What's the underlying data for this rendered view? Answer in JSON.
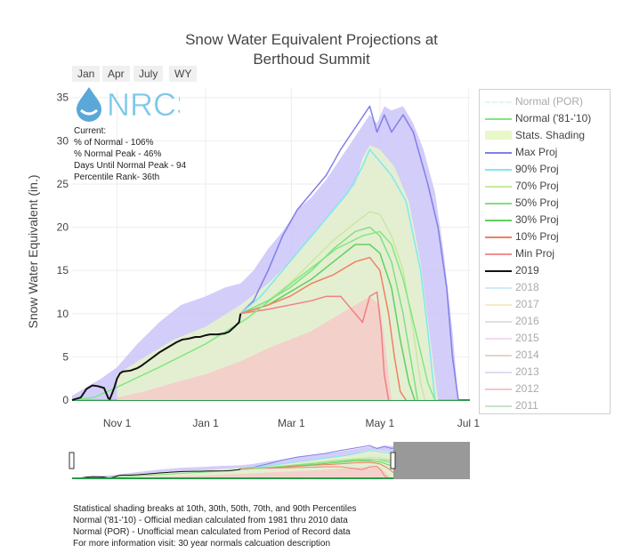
{
  "chart_data": {
    "type": "line",
    "title_line1": "Snow Water Equivalent Projections at",
    "title_line2": "Berthoud Summit",
    "ylabel": "Snow Water Equivalent (in.)",
    "xlabel": "",
    "ylim": [
      0,
      36
    ],
    "yticks": [
      0,
      5,
      10,
      15,
      20,
      25,
      30,
      35
    ],
    "xlim_days": [
      0,
      274
    ],
    "xtick_labels": [
      {
        "day": 31,
        "label": "Nov 1"
      },
      {
        "day": 92,
        "label": "Jan 1"
      },
      {
        "day": 151,
        "label": "Mar 1"
      },
      {
        "day": 212,
        "label": "May 1"
      },
      {
        "day": 273,
        "label": "Jul 1"
      }
    ],
    "grid": true,
    "legend_position": "right",
    "series": [
      {
        "name": "Max Proj",
        "color": "#8080e8",
        "points": [
          [
            116,
            10
          ],
          [
            125,
            11.5
          ],
          [
            135,
            15
          ],
          [
            145,
            19
          ],
          [
            155,
            22
          ],
          [
            165,
            24
          ],
          [
            175,
            26
          ],
          [
            185,
            29
          ],
          [
            195,
            31.5
          ],
          [
            205,
            34
          ],
          [
            210,
            31
          ],
          [
            215,
            33
          ],
          [
            220,
            31
          ],
          [
            228,
            33
          ],
          [
            235,
            31
          ],
          [
            245,
            25
          ],
          [
            252,
            20
          ],
          [
            258,
            13
          ],
          [
            262,
            5
          ],
          [
            266,
            0
          ]
        ]
      },
      {
        "name": "90% Proj",
        "color": "#80e8f0",
        "points": [
          [
            116,
            10
          ],
          [
            130,
            12
          ],
          [
            145,
            15
          ],
          [
            160,
            18
          ],
          [
            175,
            21
          ],
          [
            190,
            24
          ],
          [
            200,
            27
          ],
          [
            205,
            29
          ],
          [
            210,
            28
          ],
          [
            220,
            26
          ],
          [
            230,
            23
          ],
          [
            240,
            15
          ],
          [
            245,
            8
          ],
          [
            250,
            0
          ]
        ]
      },
      {
        "name": "70% Proj",
        "color": "#c8e8a0",
        "points": [
          [
            116,
            10
          ],
          [
            135,
            11.5
          ],
          [
            150,
            13.5
          ],
          [
            165,
            16
          ],
          [
            180,
            18.5
          ],
          [
            195,
            20.5
          ],
          [
            205,
            21.8
          ],
          [
            212,
            21.5
          ],
          [
            220,
            19
          ],
          [
            228,
            15
          ],
          [
            235,
            8
          ],
          [
            240,
            2
          ],
          [
            243,
            0
          ]
        ]
      },
      {
        "name": "50% Proj",
        "color": "#80e080",
        "points": [
          [
            116,
            10
          ],
          [
            135,
            11.5
          ],
          [
            150,
            13
          ],
          [
            165,
            15
          ],
          [
            180,
            17.5
          ],
          [
            195,
            19.5
          ],
          [
            205,
            20
          ],
          [
            212,
            19
          ],
          [
            220,
            16
          ],
          [
            228,
            10
          ],
          [
            234,
            4
          ],
          [
            238,
            0
          ]
        ]
      },
      {
        "name": "30% Proj",
        "color": "#60d060",
        "points": [
          [
            116,
            10
          ],
          [
            135,
            11
          ],
          [
            150,
            12.5
          ],
          [
            165,
            14
          ],
          [
            180,
            16
          ],
          [
            195,
            18
          ],
          [
            205,
            18
          ],
          [
            212,
            17
          ],
          [
            220,
            13
          ],
          [
            226,
            7
          ],
          [
            232,
            2
          ],
          [
            236,
            0
          ]
        ]
      },
      {
        "name": "10% Proj",
        "color": "#f08060",
        "points": [
          [
            116,
            10
          ],
          [
            135,
            11
          ],
          [
            150,
            12
          ],
          [
            165,
            13.5
          ],
          [
            180,
            14.5
          ],
          [
            195,
            16
          ],
          [
            205,
            16.5
          ],
          [
            212,
            15
          ],
          [
            218,
            10
          ],
          [
            222,
            5
          ],
          [
            226,
            1
          ],
          [
            230,
            0
          ]
        ]
      },
      {
        "name": "Min Proj",
        "color": "#f08080",
        "points": [
          [
            116,
            10
          ],
          [
            135,
            10.5
          ],
          [
            150,
            11
          ],
          [
            165,
            11.5
          ],
          [
            175,
            12
          ],
          [
            185,
            12
          ],
          [
            190,
            11
          ],
          [
            195,
            10
          ],
          [
            200,
            9
          ],
          [
            205,
            12
          ],
          [
            210,
            12.5
          ],
          [
            213,
            8
          ],
          [
            215,
            3
          ],
          [
            218,
            0
          ]
        ]
      },
      {
        "name": "Normal ('81-'10)",
        "color": "#80e880",
        "points": [
          [
            0,
            0
          ],
          [
            15,
            0.3
          ],
          [
            31,
            1.5
          ],
          [
            60,
            3.8
          ],
          [
            92,
            6.5
          ],
          [
            121,
            9.5
          ],
          [
            151,
            13.5
          ],
          [
            182,
            17.5
          ],
          [
            200,
            19
          ],
          [
            212,
            19.5
          ],
          [
            220,
            18
          ],
          [
            228,
            14
          ],
          [
            238,
            7
          ],
          [
            245,
            2
          ],
          [
            250,
            0
          ]
        ]
      },
      {
        "name": "2019",
        "color": "#111111",
        "points": [
          [
            0,
            0
          ],
          [
            6,
            0.3
          ],
          [
            10,
            1.3
          ],
          [
            14,
            1.7
          ],
          [
            18,
            1.6
          ],
          [
            22,
            1.4
          ],
          [
            24,
            0.6
          ],
          [
            25,
            0.2
          ],
          [
            26,
            0.1
          ],
          [
            29,
            1.4
          ],
          [
            31,
            2.5
          ],
          [
            33,
            3.1
          ],
          [
            35,
            3.3
          ],
          [
            40,
            3.4
          ],
          [
            45,
            3.7
          ],
          [
            48,
            4.0
          ],
          [
            52,
            4.5
          ],
          [
            56,
            5.0
          ],
          [
            60,
            5.5
          ],
          [
            65,
            6.0
          ],
          [
            68,
            6.3
          ],
          [
            72,
            6.7
          ],
          [
            76,
            7.0
          ],
          [
            80,
            7.1
          ],
          [
            85,
            7.3
          ],
          [
            88,
            7.3
          ],
          [
            92,
            7.5
          ],
          [
            95,
            7.6
          ],
          [
            100,
            7.6
          ],
          [
            105,
            7.7
          ],
          [
            108,
            7.9
          ],
          [
            112,
            8.5
          ],
          [
            115,
            9.0
          ],
          [
            116,
            10
          ]
        ]
      }
    ],
    "bands": [
      {
        "name": "Max envelope",
        "color": "#c8c0f8",
        "upper": [
          [
            0,
            0.5
          ],
          [
            10,
            1.5
          ],
          [
            20,
            2.5
          ],
          [
            31,
            3.8
          ],
          [
            45,
            6.5
          ],
          [
            60,
            9
          ],
          [
            75,
            11
          ],
          [
            92,
            12
          ],
          [
            105,
            13
          ],
          [
            116,
            13.5
          ],
          [
            125,
            15
          ],
          [
            135,
            17.5
          ],
          [
            145,
            19.5
          ],
          [
            155,
            22
          ],
          [
            165,
            23.5
          ],
          [
            175,
            25.5
          ],
          [
            185,
            28
          ],
          [
            195,
            30.5
          ],
          [
            205,
            33
          ],
          [
            210,
            32
          ],
          [
            215,
            34
          ],
          [
            220,
            33.5
          ],
          [
            228,
            34
          ],
          [
            235,
            32
          ],
          [
            242,
            29
          ],
          [
            250,
            24
          ],
          [
            256,
            17
          ],
          [
            262,
            8
          ],
          [
            266,
            0
          ]
        ]
      },
      {
        "name": "Percentile shading",
        "color": "#e8f8c8",
        "upper": [
          [
            31,
            3
          ],
          [
            50,
            5
          ],
          [
            70,
            7
          ],
          [
            92,
            8.5
          ],
          [
            116,
            11
          ],
          [
            135,
            13.5
          ],
          [
            150,
            16
          ],
          [
            165,
            19
          ],
          [
            180,
            22
          ],
          [
            195,
            25
          ],
          [
            200,
            28
          ],
          [
            205,
            29.5
          ],
          [
            212,
            29
          ],
          [
            222,
            27
          ],
          [
            232,
            23
          ],
          [
            240,
            16
          ],
          [
            246,
            8
          ],
          [
            252,
            0
          ]
        ]
      },
      {
        "name": "Min envelope",
        "color": "#f8c8c8",
        "upper": [
          [
            31,
            0.3
          ],
          [
            50,
            1
          ],
          [
            70,
            2
          ],
          [
            92,
            3
          ],
          [
            116,
            4.5
          ],
          [
            135,
            6
          ],
          [
            150,
            7
          ],
          [
            165,
            8
          ],
          [
            180,
            9.5
          ],
          [
            195,
            11
          ],
          [
            205,
            12
          ],
          [
            212,
            11
          ],
          [
            216,
            6
          ],
          [
            220,
            0
          ]
        ]
      }
    ],
    "annotations": [
      "Current:",
      "% of Normal - 106%",
      "% Normal Peak - 46%",
      "Days Until Normal Peak - 94",
      "Percentile Rank- 36th"
    ]
  },
  "range_buttons": [
    "Jan",
    "Apr",
    "July",
    "WY"
  ],
  "logo_text": "NRCS",
  "legend": [
    {
      "label": "Normal (POR)",
      "color": "#c8f0e0",
      "style": "dashed",
      "dim": true
    },
    {
      "label": "Normal ('81-'10)",
      "color": "#80e880",
      "style": "solid",
      "dim": false
    },
    {
      "label": "Stats. Shading",
      "color": "#e8f8c8",
      "style": "band",
      "dim": false
    },
    {
      "label": "Max Proj",
      "color": "#8080e8",
      "style": "solid",
      "dim": false
    },
    {
      "label": "90% Proj",
      "color": "#80e8f0",
      "style": "solid",
      "dim": false
    },
    {
      "label": "70% Proj",
      "color": "#c8e8a0",
      "style": "solid",
      "dim": false
    },
    {
      "label": "50% Proj",
      "color": "#80e080",
      "style": "solid",
      "dim": false
    },
    {
      "label": "30% Proj",
      "color": "#60d060",
      "style": "solid",
      "dim": false
    },
    {
      "label": "10% Proj",
      "color": "#f08060",
      "style": "solid",
      "dim": false
    },
    {
      "label": "Min Proj",
      "color": "#f09090",
      "style": "solid",
      "dim": false
    },
    {
      "label": "2019",
      "color": "#111111",
      "style": "solid",
      "dim": false
    },
    {
      "label": "2018",
      "color": "#a0d8f0",
      "style": "solid",
      "dim": true
    },
    {
      "label": "2017",
      "color": "#f0d890",
      "style": "solid",
      "dim": true
    },
    {
      "label": "2016",
      "color": "#c0c0c0",
      "style": "solid",
      "dim": true
    },
    {
      "label": "2015",
      "color": "#e8b8e8",
      "style": "solid",
      "dim": true
    },
    {
      "label": "2014",
      "color": "#d0a890",
      "style": "solid",
      "dim": true
    },
    {
      "label": "2013",
      "color": "#c8b8e0",
      "style": "solid",
      "dim": true
    },
    {
      "label": "2012",
      "color": "#e89090",
      "style": "solid",
      "dim": true
    },
    {
      "label": "2011",
      "color": "#90c890",
      "style": "solid",
      "dim": true
    }
  ],
  "footer": [
    "Statistical shading breaks at 10th, 30th, 50th, 70th, and 90th Percentiles",
    "Normal ('81-'10) - Official median calculated from 1981 thru 2010 data",
    "Normal (POR) - Unofficial mean calculated from Period of Record data",
    "For more information visit: 30 year normals calcuation description"
  ]
}
